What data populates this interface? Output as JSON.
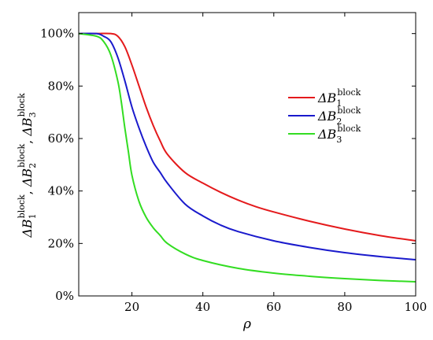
{
  "chart_data": {
    "type": "line",
    "xlabel": "ρ",
    "ylabel": {
      "base": "ΔB",
      "sup": "block",
      "subs": [
        "1",
        "2",
        "3"
      ]
    },
    "xlim": [
      5,
      100
    ],
    "ylim": [
      0,
      1.08
    ],
    "xticks": [
      20,
      40,
      60,
      80,
      100
    ],
    "xtick_labels": [
      "20",
      "40",
      "60",
      "80",
      "100"
    ],
    "yticks": [
      0,
      0.2,
      0.4,
      0.6,
      0.8,
      1.0
    ],
    "ytick_labels": [
      "0%",
      "20%",
      "40%",
      "60%",
      "80%",
      "100%"
    ],
    "grid": false,
    "legend_position": "right",
    "series": [
      {
        "name": "ΔB_1^block",
        "label_base": "ΔB",
        "label_sub": "1",
        "label_sup": "block",
        "color": "#e41a1c",
        "x": [
          5,
          10,
          14,
          16,
          18,
          20,
          22,
          24,
          26,
          28,
          30,
          35,
          40,
          45,
          50,
          55,
          60,
          70,
          80,
          90,
          100
        ],
        "y": [
          1.0,
          1.0,
          1.0,
          0.99,
          0.95,
          0.88,
          0.8,
          0.72,
          0.65,
          0.59,
          0.54,
          0.47,
          0.43,
          0.395,
          0.365,
          0.34,
          0.32,
          0.285,
          0.255,
          0.23,
          0.21
        ]
      },
      {
        "name": "ΔB_2^block",
        "label_base": "ΔB",
        "label_sub": "2",
        "label_sup": "block",
        "color": "#1a1acc",
        "x": [
          5,
          10,
          12,
          14,
          16,
          18,
          20,
          22,
          24,
          26,
          28,
          30,
          35,
          40,
          45,
          50,
          60,
          70,
          80,
          90,
          100
        ],
        "y": [
          1.0,
          1.0,
          0.99,
          0.97,
          0.91,
          0.82,
          0.72,
          0.64,
          0.57,
          0.51,
          0.47,
          0.43,
          0.35,
          0.305,
          0.27,
          0.245,
          0.21,
          0.185,
          0.165,
          0.15,
          0.138
        ]
      },
      {
        "name": "ΔB_3^block",
        "label_base": "ΔB",
        "label_sub": "3",
        "label_sup": "block",
        "color": "#33dd22",
        "x": [
          5,
          10,
          12,
          14,
          16,
          17,
          18,
          19,
          20,
          22,
          24,
          26,
          28,
          30,
          35,
          40,
          50,
          60,
          70,
          80,
          90,
          100
        ],
        "y": [
          1.0,
          0.99,
          0.97,
          0.92,
          0.82,
          0.74,
          0.64,
          0.55,
          0.46,
          0.36,
          0.3,
          0.26,
          0.23,
          0.2,
          0.16,
          0.135,
          0.105,
          0.087,
          0.075,
          0.066,
          0.059,
          0.054
        ]
      }
    ]
  }
}
